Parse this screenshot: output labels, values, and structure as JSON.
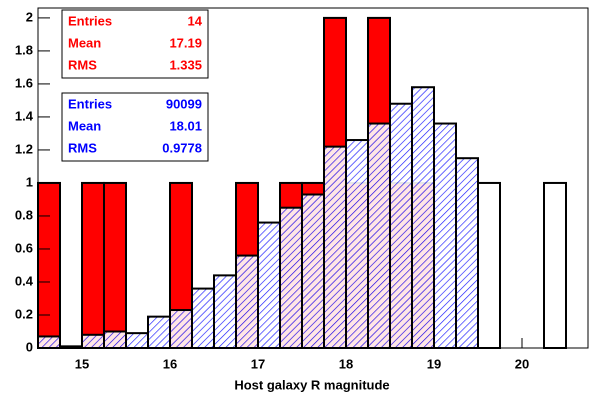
{
  "chart_data": {
    "type": "histogram",
    "x_label": "Host galaxy R magnitude",
    "bins": [
      14.5,
      14.75,
      15,
      15.25,
      15.5,
      15.75,
      16,
      16.25,
      16.5,
      16.75,
      17,
      17.25,
      17.5,
      17.75,
      18,
      18.25,
      18.5,
      18.75,
      19,
      19.25,
      19.5,
      19.75,
      20,
      20.25,
      20.5,
      20.75
    ],
    "series": [
      {
        "color": "#ff0000",
        "fill": "solid",
        "values": [
          1,
          0,
          1,
          1,
          0,
          0,
          1,
          0,
          0,
          1,
          0,
          1,
          1,
          2,
          1,
          2,
          1,
          1,
          0,
          0,
          0,
          0,
          0,
          0,
          0
        ]
      },
      {
        "color": "#0000ff",
        "fill": "hatch",
        "values": [
          0.07,
          0.01,
          0.08,
          0.1,
          0.09,
          0.19,
          0.23,
          0.36,
          0.44,
          0.56,
          0.76,
          0.85,
          0.93,
          1.22,
          1.26,
          1.36,
          1.48,
          1.58,
          1.36,
          1.15,
          0,
          0,
          0,
          0,
          0
        ]
      },
      {
        "color": "#ffffff",
        "fill": "solid",
        "values": [
          0,
          0,
          0,
          0,
          0,
          0,
          0,
          0,
          0,
          0,
          0,
          0,
          0,
          0,
          0,
          0,
          0,
          0,
          0,
          0,
          1,
          0,
          0,
          1,
          0
        ]
      }
    ],
    "xlim": [
      14.5,
      20.75
    ],
    "xticks": [
      15,
      16,
      17,
      18,
      19,
      20
    ],
    "ylim": [
      0,
      2.06
    ],
    "yticks": [
      0,
      0.2,
      0.4,
      0.6,
      0.8,
      1,
      1.2,
      1.4,
      1.6,
      1.8,
      2
    ],
    "stats": [
      {
        "color": "#ff0000",
        "rows": [
          {
            "label": "Entries",
            "value": 14
          },
          {
            "label": "Mean",
            "value": 17.19
          },
          {
            "label": "RMS",
            "value": 1.335
          }
        ]
      },
      {
        "color": "#0000ff",
        "rows": [
          {
            "label": "Entries",
            "value": 90099
          },
          {
            "label": "Mean",
            "value": 18.01
          },
          {
            "label": "RMS",
            "value": 0.9778
          }
        ]
      }
    ]
  }
}
